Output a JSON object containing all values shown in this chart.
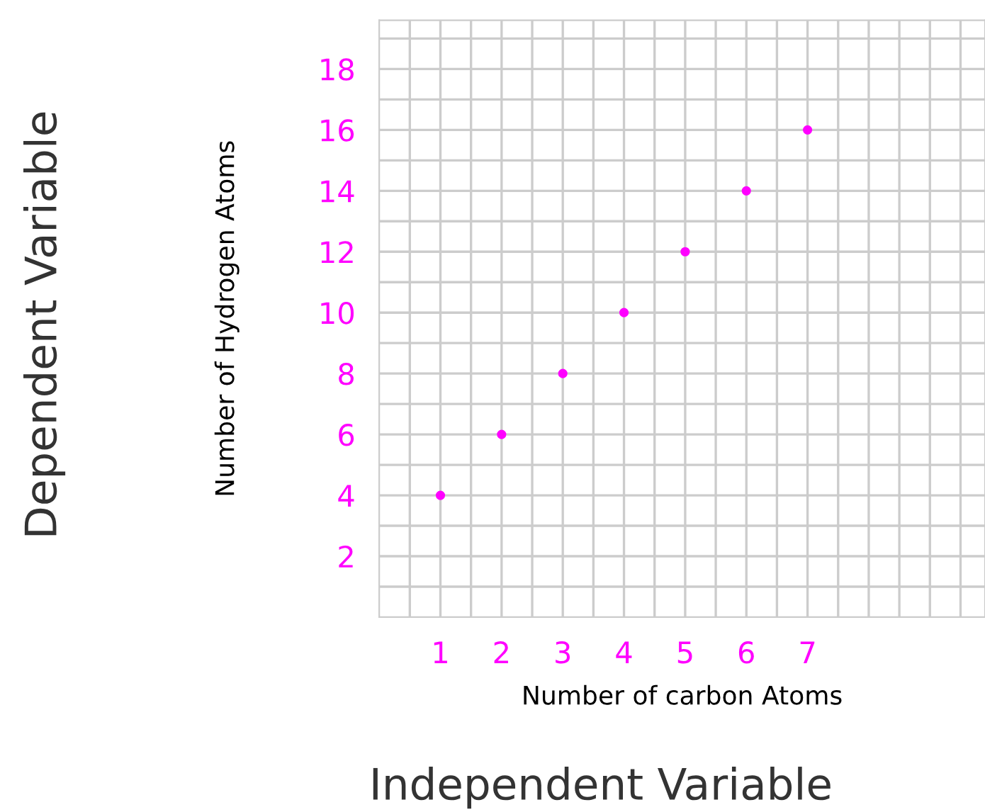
{
  "chart_data": {
    "type": "scatter",
    "xlabel": "Number of carbon Atoms",
    "ylabel": "Number of Hydrogen Atoms",
    "annotations": [
      "Dependent Variable",
      "Independent Variable"
    ],
    "x": [
      1,
      2,
      3,
      4,
      5,
      6,
      7
    ],
    "series": [
      {
        "color": "#ff00ff",
        "values": [
          4,
          6,
          8,
          10,
          12,
          14,
          16
        ]
      }
    ],
    "xlim": [
      0,
      9.9
    ],
    "ylim": [
      0,
      19.6
    ],
    "xticks": [
      {
        "value": 0.5,
        "label": null
      },
      1,
      {
        "value": 1.5,
        "label": null
      },
      2,
      {
        "value": 2.5,
        "label": null
      },
      3,
      {
        "value": 3.5,
        "label": null
      },
      4,
      {
        "value": 4.5,
        "label": null
      },
      5,
      {
        "value": 5.5,
        "label": null
      },
      6,
      {
        "value": 6.5,
        "label": null
      },
      7,
      {
        "value": 7.5,
        "label": null
      },
      {
        "value": 8,
        "label": null
      },
      {
        "value": 8.5,
        "label": null
      },
      {
        "value": 9,
        "label": null
      },
      {
        "value": 9.5,
        "label": null
      }
    ],
    "yticks": [
      {
        "value": 1,
        "label": null
      },
      2,
      {
        "value": 3,
        "label": null
      },
      4,
      {
        "value": 5,
        "label": null
      },
      6,
      {
        "value": 7,
        "label": null
      },
      8,
      {
        "value": 9,
        "label": null
      },
      10,
      {
        "value": 11,
        "label": null
      },
      12,
      {
        "value": 13,
        "label": null
      },
      14,
      {
        "value": 15,
        "label": null
      },
      16,
      {
        "value": 17,
        "label": null
      },
      18,
      {
        "value": 19,
        "label": null
      }
    ],
    "grid": true,
    "marker": "circle"
  }
}
